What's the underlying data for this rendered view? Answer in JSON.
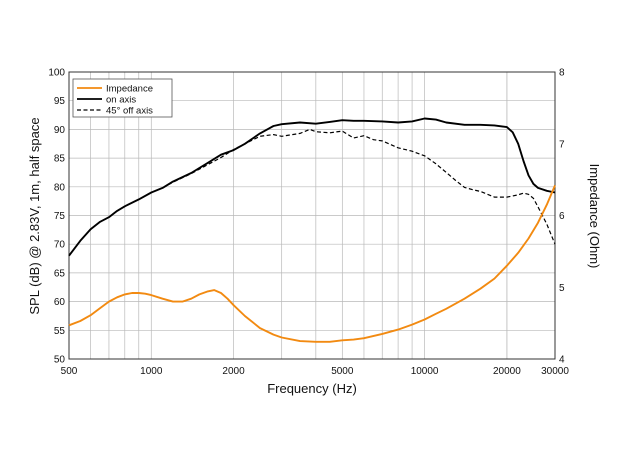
{
  "chart_data": {
    "type": "line",
    "xscale": "log",
    "xlabel": "Frequency (Hz)",
    "ylabel": "SPL (dB) @ 2.83V, 1m, half space",
    "ylabel_right": "Impedance (Ohm)",
    "xlim": [
      500,
      30000
    ],
    "ylim": [
      50,
      100
    ],
    "ylim_right": [
      4,
      8
    ],
    "x_ticks": [
      500,
      1000,
      2000,
      5000,
      10000,
      20000,
      30000
    ],
    "x_tick_labels": [
      "500",
      "1000",
      "2000",
      "5000",
      "10000",
      "20000",
      "30000"
    ],
    "y_ticks": [
      50,
      55,
      60,
      65,
      70,
      75,
      80,
      85,
      90,
      95,
      100
    ],
    "y_tick_labels": [
      "50",
      "55",
      "60",
      "65",
      "70",
      "75",
      "80",
      "85",
      "90",
      "95",
      "100"
    ],
    "y_right_ticks": [
      4,
      5,
      6,
      7,
      8
    ],
    "y_right_tick_labels": [
      "4",
      "5",
      "6",
      "7",
      "8"
    ],
    "grid": true,
    "legend": "top-left",
    "colors": {
      "impedance": "#f28a11",
      "on_axis": "#000000",
      "off_axis": "#000000"
    },
    "series": [
      {
        "name": "Impedance",
        "axis": "right",
        "style": "solid",
        "x": [
          500,
          550,
          600,
          650,
          700,
          750,
          800,
          850,
          900,
          950,
          1000,
          1100,
          1200,
          1300,
          1400,
          1500,
          1600,
          1700,
          1800,
          1900,
          2000,
          2200,
          2500,
          2800,
          3000,
          3500,
          4000,
          4500,
          5000,
          5500,
          6000,
          7000,
          8000,
          9000,
          10000,
          11000,
          12000,
          14000,
          16000,
          18000,
          20000,
          22000,
          24000,
          26000,
          28000,
          30000
        ],
        "values": [
          4.47,
          4.53,
          4.61,
          4.71,
          4.8,
          4.86,
          4.9,
          4.92,
          4.92,
          4.91,
          4.89,
          4.84,
          4.8,
          4.8,
          4.84,
          4.9,
          4.94,
          4.96,
          4.92,
          4.84,
          4.75,
          4.6,
          4.43,
          4.34,
          4.3,
          4.25,
          4.24,
          4.24,
          4.26,
          4.27,
          4.29,
          4.35,
          4.41,
          4.48,
          4.55,
          4.63,
          4.7,
          4.84,
          4.98,
          5.12,
          5.3,
          5.48,
          5.68,
          5.9,
          6.15,
          6.42
        ]
      },
      {
        "name": "on axis",
        "axis": "left",
        "style": "solid",
        "x": [
          500,
          550,
          600,
          650,
          700,
          750,
          800,
          900,
          1000,
          1100,
          1200,
          1400,
          1600,
          1800,
          2000,
          2200,
          2500,
          2800,
          3000,
          3500,
          4000,
          4500,
          5000,
          5500,
          6000,
          7000,
          8000,
          9000,
          10000,
          11000,
          12000,
          14000,
          16000,
          18000,
          20000,
          21000,
          22000,
          23000,
          24000,
          25000,
          26000,
          28000,
          30000
        ],
        "values": [
          68,
          70.6,
          72.6,
          73.9,
          74.7,
          75.8,
          76.6,
          77.8,
          79,
          79.8,
          80.9,
          82.4,
          84.1,
          85.6,
          86.4,
          87.5,
          89.3,
          90.6,
          90.9,
          91.2,
          91,
          91.3,
          91.6,
          91.5,
          91.5,
          91.4,
          91.2,
          91.4,
          91.9,
          91.7,
          91.2,
          90.8,
          90.8,
          90.7,
          90.4,
          89.5,
          87.5,
          84.5,
          82,
          80.5,
          79.8,
          79.3,
          79
        ]
      },
      {
        "name": "45° off axis",
        "axis": "left",
        "style": "dashed",
        "x": [
          1100,
          1200,
          1400,
          1600,
          1800,
          2000,
          2200,
          2500,
          2800,
          3000,
          3500,
          3800,
          4000,
          4500,
          5000,
          5500,
          6000,
          6500,
          7000,
          8000,
          9000,
          10000,
          11000,
          12000,
          13000,
          14000,
          15000,
          16000,
          18000,
          20000,
          21000,
          22000,
          23000,
          24000,
          25000,
          26000,
          28000,
          30000
        ],
        "values": [
          79.8,
          80.8,
          82.3,
          83.8,
          85.1,
          86.5,
          87.5,
          88.8,
          89.1,
          88.8,
          89.3,
          90,
          89.6,
          89.4,
          89.7,
          88.5,
          88.9,
          88.2,
          88,
          86.8,
          86.2,
          85.4,
          84,
          82.5,
          81.1,
          79.9,
          79.5,
          79.2,
          78.2,
          78.2,
          78.4,
          78.6,
          78.9,
          78.7,
          78,
          76.5,
          73.5,
          70
        ]
      }
    ]
  }
}
